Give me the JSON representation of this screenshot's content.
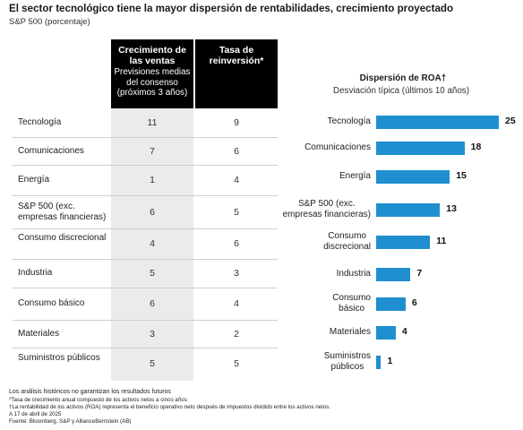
{
  "title": "El sector tecnológico tiene la mayor dispersión de rentabilidades, crecimiento proyectado",
  "subtitle": "S&P 500 (porcentaje)",
  "table": {
    "col1": {
      "header": "Crecimiento de las ventas",
      "sub": "Previsiones medias del consenso (próximos 3 años)"
    },
    "col2": {
      "header": "Tasa de reinversión*"
    }
  },
  "chart_data": [
    {
      "type": "table",
      "columns": [
        "Crecimiento de las ventas",
        "Tasa de reinversión*"
      ],
      "rows": [
        {
          "label": "Tecnología",
          "values": [
            11,
            9
          ]
        },
        {
          "label": "Comunicaciones",
          "values": [
            7,
            6
          ]
        },
        {
          "label": "Energía",
          "values": [
            1,
            4
          ]
        },
        {
          "label": "S&P 500 (exc. empresas financieras)",
          "values": [
            6,
            5
          ]
        },
        {
          "label": "Consumo discrecional",
          "values": [
            4,
            6
          ]
        },
        {
          "label": "Industria",
          "values": [
            5,
            3
          ]
        },
        {
          "label": "Consumo básico",
          "values": [
            6,
            4
          ]
        },
        {
          "label": "Materiales",
          "values": [
            3,
            2
          ]
        },
        {
          "label": "Suministros públicos",
          "values": [
            5,
            5
          ]
        }
      ]
    },
    {
      "type": "bar",
      "title": "Dispersión de ROA†",
      "subtitle": "Desviación típica (últimos 10 años)",
      "categories": [
        "Tecnología",
        "Comunicaciones",
        "Energía",
        "S&P 500 (exc. empresas financieras)",
        "Consumo discrecional",
        "Industria",
        "Consumo básico",
        "Materiales",
        "Suministros públicos"
      ],
      "values": [
        25,
        18,
        15,
        13,
        11,
        7,
        6,
        4,
        1
      ],
      "xlim": [
        0,
        25
      ],
      "color": "#1f8fd0",
      "orientation": "horizontal"
    }
  ],
  "footnotes": [
    "Los análisis históricos no garantizan los resultados futuros",
    "*Tasa de crecimiento anual compuesto de los activos netos a cinco años",
    "†La rentabilidad de los activos (ROA) representa el beneficio operativo neto después de impuestos dividido entre los activos netos.",
    "A 17 de abril de 2025",
    "Fuente: Bloomberg, S&P y AllianceBernstein (AB)"
  ]
}
